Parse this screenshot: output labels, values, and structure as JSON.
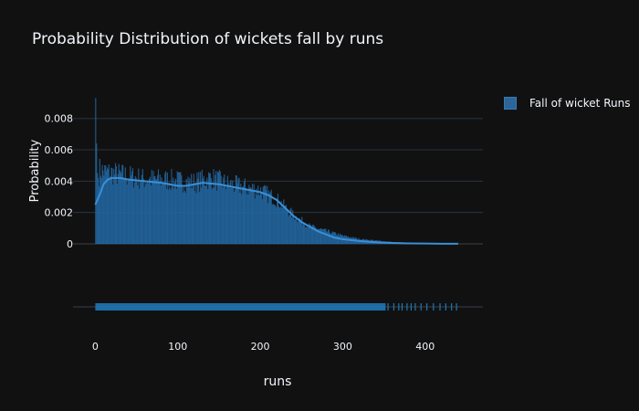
{
  "chart_data": {
    "type": "histogram",
    "title": "Probability Distribution of wickets fall by runs",
    "xlabel": "runs",
    "ylabel": "Probability",
    "xlim": [
      -27,
      470
    ],
    "ylim": [
      0,
      0.0095
    ],
    "xticks": [
      0,
      100,
      200,
      300,
      400
    ],
    "xtick_labels": [
      "0",
      "100",
      "200",
      "300",
      "400"
    ],
    "yticks": [
      0,
      0.002,
      0.004,
      0.006,
      0.008
    ],
    "ytick_labels": [
      "0",
      "0.002",
      "0.004",
      "0.006",
      "0.008"
    ],
    "legend": {
      "position": "top-right",
      "entries": [
        "Fall of wicket Runs"
      ]
    },
    "grid": true,
    "series": [
      {
        "name": "Fall of wicket Runs",
        "color": "#1f77b4",
        "bin_width": 1,
        "histogram_profile": {
          "x": [
            0,
            1,
            2,
            3,
            5,
            10,
            20,
            40,
            60,
            80,
            100,
            120,
            140,
            160,
            180,
            200,
            220,
            240,
            260,
            280,
            300,
            320,
            340,
            360,
            380,
            400,
            420,
            440
          ],
          "density": [
            0.0093,
            0.0064,
            0.0045,
            0.0042,
            0.0047,
            0.0046,
            0.0045,
            0.0043,
            0.0041,
            0.0041,
            0.004,
            0.0039,
            0.0042,
            0.0038,
            0.0036,
            0.0034,
            0.0028,
            0.0018,
            0.0011,
            0.0008,
            0.0005,
            0.0003,
            0.0002,
            0.0001,
            6e-05,
            4e-05,
            2e-05,
            1e-05
          ]
        },
        "kde": {
          "x": [
            0,
            5,
            10,
            15,
            20,
            30,
            40,
            60,
            80,
            100,
            110,
            130,
            150,
            170,
            190,
            200,
            210,
            220,
            230,
            240,
            250,
            260,
            270,
            280,
            290,
            300,
            320,
            340,
            360,
            380,
            400,
            420,
            440
          ],
          "y": [
            0.0025,
            0.0031,
            0.0038,
            0.0041,
            0.0042,
            0.0042,
            0.0041,
            0.004,
            0.0039,
            0.0037,
            0.0037,
            0.0039,
            0.0038,
            0.0036,
            0.0034,
            0.0033,
            0.0031,
            0.0028,
            0.0023,
            0.0018,
            0.0014,
            0.0011,
            0.0008,
            0.0006,
            0.0004,
            0.0003,
            0.00018,
            0.0001,
            6e-05,
            3e-05,
            2e-05,
            1e-05,
            5e-06
          ]
        },
        "rug_range": [
          0,
          438
        ],
        "rug_sparse": [
          355,
          362,
          368,
          372,
          378,
          383,
          388,
          395,
          402,
          410,
          418,
          425,
          432,
          438
        ]
      }
    ]
  }
}
